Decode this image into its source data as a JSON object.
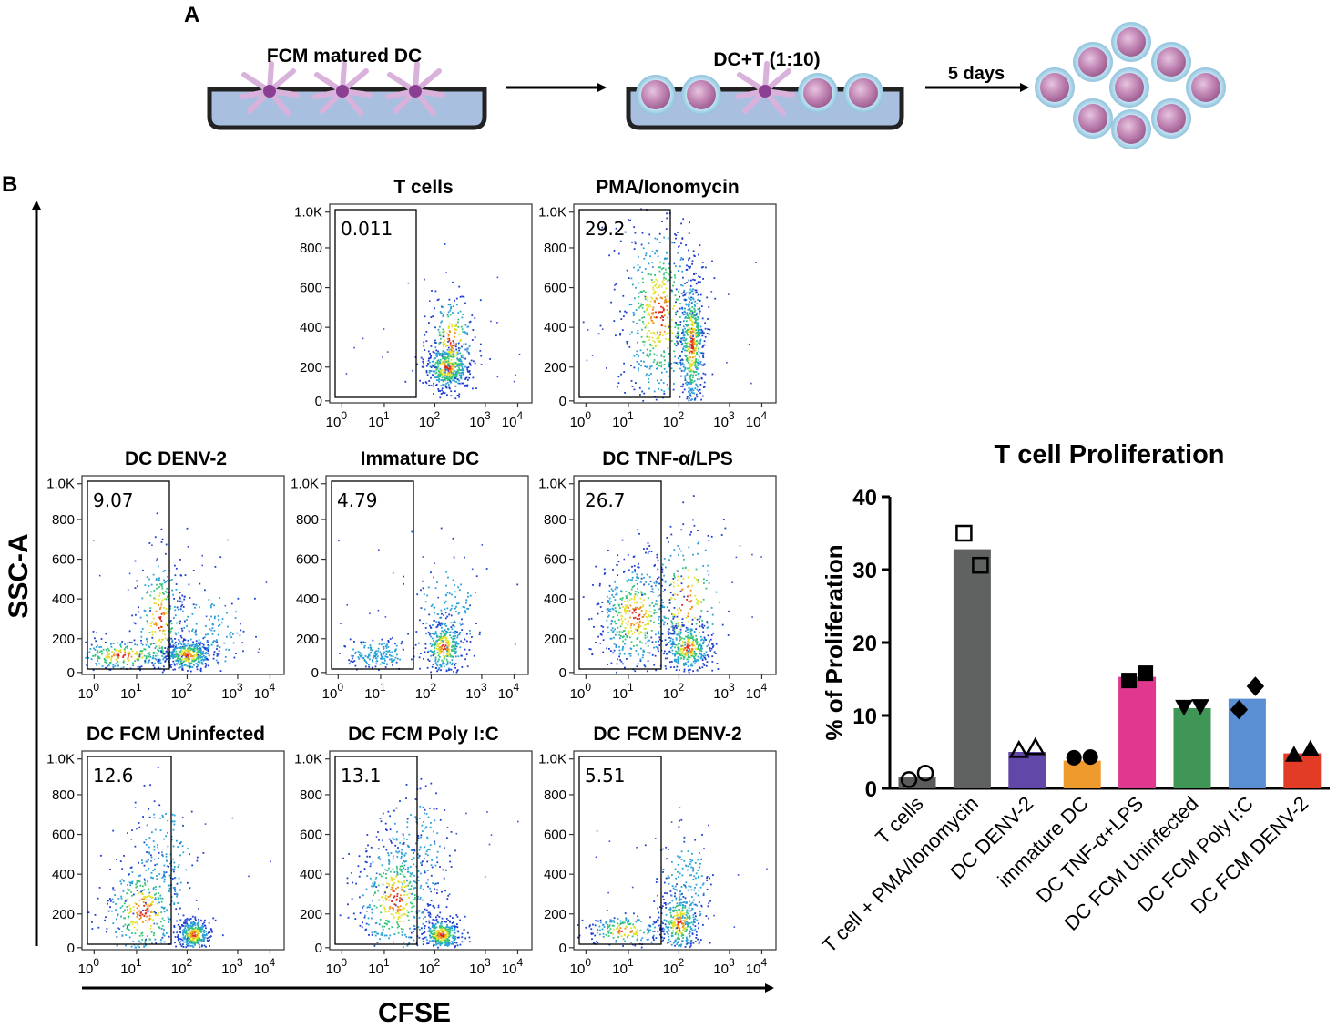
{
  "panel_a": {
    "letter": "A",
    "step1_label": "FCM matured DC",
    "step2_label": "DC+T (1:10)",
    "arrow_label": "5 days"
  },
  "panel_b": {
    "letter": "B",
    "y_axis_label": "SSC-A",
    "x_axis_label": "CFSE"
  },
  "flow_plots": {
    "y_ticks": [
      "1.0K",
      "800",
      "600",
      "400",
      "200",
      "0"
    ],
    "x_tick_exponents": [
      "0",
      "1",
      "2",
      "3",
      "4"
    ],
    "x_tick_base": "10",
    "plots": [
      {
        "title": "T cells",
        "gate_value": "0.011"
      },
      {
        "title": "PMA/Ionomycin",
        "gate_value": "29.2"
      },
      {
        "title": "DC DENV-2",
        "gate_value": "9.07"
      },
      {
        "title": "Immature DC",
        "gate_value": "4.79"
      },
      {
        "title": "DC TNF-α/LPS",
        "gate_value": "26.7"
      },
      {
        "title": "DC FCM Uninfected",
        "gate_value": "12.6"
      },
      {
        "title": "DC FCM Poly I:C",
        "gate_value": "13.1"
      },
      {
        "title": "DC FCM DENV-2",
        "gate_value": "5.51"
      }
    ]
  },
  "chart_data": {
    "type": "bar",
    "title": "T cell Proliferation",
    "ylabel": "% of Proliferation",
    "xlabel": "",
    "ylim": [
      0,
      40
    ],
    "yticks": [
      0,
      10,
      20,
      30,
      40
    ],
    "categories": [
      "T cells",
      "T cell + PMA/Ionomycin",
      "DC DENV-2",
      "immature DC",
      "DC TNF-α+LPS",
      "DC FCM Uninfected",
      "DC FCM Poly I:C",
      "DC FCM DENV-2"
    ],
    "values": [
      1.5,
      32.8,
      5.0,
      3.8,
      15.3,
      11.0,
      12.3,
      4.8
    ],
    "points": [
      [
        1.2,
        2.1
      ],
      [
        35.0,
        30.6
      ],
      [
        5.2,
        5.6
      ],
      [
        4.2,
        4.3
      ],
      [
        14.8,
        15.8
      ],
      [
        11.2,
        11.3
      ],
      [
        10.8,
        14.0
      ],
      [
        4.6,
        5.4
      ]
    ],
    "colors": [
      "#5b5b5b",
      "#5f6261",
      "#6147a8",
      "#ef9a2d",
      "#e0388f",
      "#3f9656",
      "#5b8fd3",
      "#e23b26"
    ],
    "markers": [
      "open-circle",
      "open-square",
      "open-triangle",
      "filled-circle",
      "filled-square",
      "filled-triangle-down",
      "filled-diamond",
      "filled-triangle"
    ]
  }
}
